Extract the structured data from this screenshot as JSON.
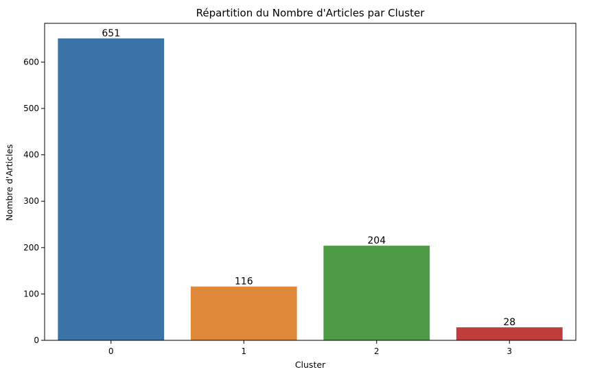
{
  "chart_data": {
    "type": "bar",
    "title": "Répartition du Nombre d'Articles par Cluster",
    "xlabel": "Cluster",
    "ylabel": "Nombre d'Articles",
    "categories": [
      "0",
      "1",
      "2",
      "3"
    ],
    "values": [
      651,
      116,
      204,
      28
    ],
    "colors": [
      "#3a73a5",
      "#e0883a",
      "#4f9a44",
      "#c03d3e"
    ],
    "yticks": [
      0,
      100,
      200,
      300,
      400,
      500,
      600
    ],
    "ylim": [
      0,
      683.55
    ],
    "grid": false,
    "legend": "none"
  }
}
